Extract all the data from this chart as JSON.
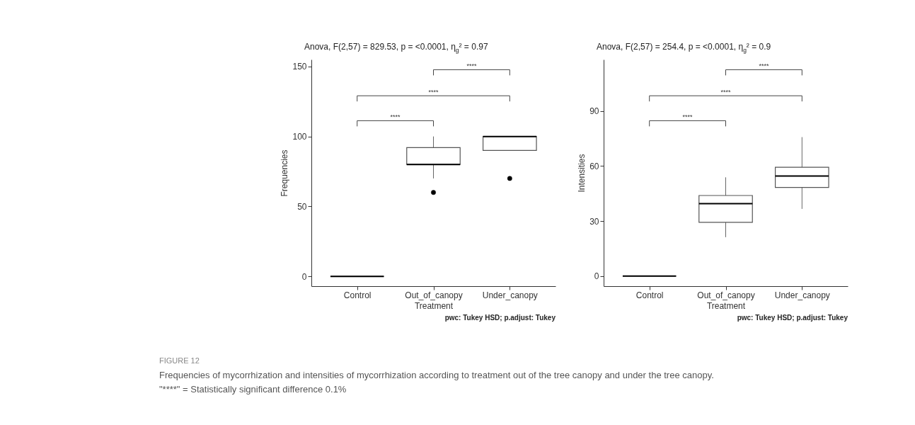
{
  "chart_data": [
    {
      "type": "box",
      "title": "Anova, F(2,57) = 829.53, p = <0.0001, η$_{g}$² = 0.97",
      "xlabel": "Treatment",
      "ylabel": "Frequencies",
      "categories": [
        "Control",
        "Out_of_canopy",
        "Under_canopy"
      ],
      "boxes": [
        {
          "low": 0,
          "q1": 0,
          "median": 0,
          "q3": 0,
          "high": 0
        },
        {
          "low": 70,
          "q1": 80,
          "median": 80,
          "q3": 92,
          "high": 100,
          "outliers": [
            60
          ]
        },
        {
          "low": 90,
          "q1": 90,
          "median": 100,
          "q3": 100,
          "high": 100,
          "outliers": [
            70
          ]
        }
      ],
      "ylim": [
        -7,
        155
      ],
      "yticks": [
        0,
        50,
        100,
        150
      ],
      "grid": false,
      "annotations": [
        "****",
        "****",
        "****",
        "pwc: Tukey HSD; p.adjust: Tukey",
        "FIGURE 12",
        "Frequencies of mycorrhization and intensities of mycorrhization according to treatment out of the tree canopy and under the tree canopy.",
        "\"****\" = Statistically significant difference 0.1%"
      ]
    },
    {
      "type": "box",
      "title": "Anova, F(2,57) = 254.4, p = <0.0001, η$_{g}$² = 0.9",
      "xlabel": "Treatment",
      "ylabel": "Intensities",
      "categories": [
        "Control",
        "Out_of_canopy",
        "Under_canopy"
      ],
      "boxes": [
        {
          "low": 0,
          "q1": 0,
          "median": 0,
          "q3": 0,
          "high": 0
        },
        {
          "low": 21.2,
          "q1": 29.3,
          "median": 39.5,
          "q3": 43.9,
          "high": 53.8
        },
        {
          "low": 36.6,
          "q1": 48.3,
          "median": 54.5,
          "q3": 59.3,
          "high": 75.7
        }
      ],
      "ylim": [
        -5.5,
        118
      ],
      "yticks": [
        0,
        30,
        60,
        90
      ],
      "grid": false,
      "annotations": [
        "****",
        "****",
        "****",
        "pwc: Tukey HSD; p.adjust: Tukey"
      ]
    }
  ]
}
